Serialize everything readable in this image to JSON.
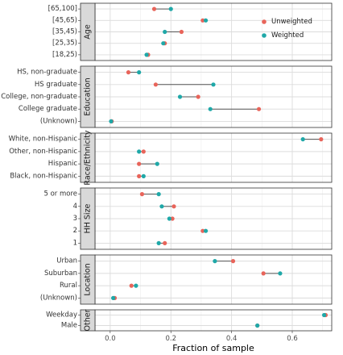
{
  "chart_data": {
    "type": "dumbbell",
    "xlabel": "Fraction of sample",
    "xlim": [
      -0.05,
      0.73
    ],
    "xticks": [
      0.0,
      0.2,
      0.4,
      0.6
    ],
    "xtick_labels": [
      "0.0",
      "0.2",
      "0.4",
      "0.6"
    ],
    "grid": true,
    "legend_position": "top-right",
    "series": [
      {
        "name": "Unweighted",
        "color": "#E8645A"
      },
      {
        "name": "Weighted",
        "color": "#1FA8A8"
      }
    ],
    "panels": [
      {
        "label": "Age",
        "rows": [
          {
            "category": "[65,100]",
            "unweighted": 0.145,
            "weighted": 0.2
          },
          {
            "category": "[45,65)",
            "unweighted": 0.305,
            "weighted": 0.315
          },
          {
            "category": "[35,45)",
            "unweighted": 0.235,
            "weighted": 0.18
          },
          {
            "category": "[25,35)",
            "unweighted": 0.18,
            "weighted": 0.175
          },
          {
            "category": "[18,25)",
            "unweighted": 0.125,
            "weighted": 0.12
          }
        ]
      },
      {
        "label": "Education",
        "rows": [
          {
            "category": "HS, non-graduate",
            "unweighted": 0.06,
            "weighted": 0.095
          },
          {
            "category": "HS graduate",
            "unweighted": 0.15,
            "weighted": 0.34
          },
          {
            "category": "College, non-graduate",
            "unweighted": 0.29,
            "weighted": 0.23
          },
          {
            "category": "College graduate",
            "unweighted": 0.49,
            "weighted": 0.33
          },
          {
            "category": "(Unknown)",
            "unweighted": 0.005,
            "weighted": 0.003
          }
        ]
      },
      {
        "label": "Race/Ethnicity",
        "rows": [
          {
            "category": "White, non-Hispanic",
            "unweighted": 0.695,
            "weighted": 0.635
          },
          {
            "category": "Other, non-Hispanic",
            "unweighted": 0.11,
            "weighted": 0.095
          },
          {
            "category": "Hispanic",
            "unweighted": 0.095,
            "weighted": 0.155
          },
          {
            "category": "Black, non-Hispanic",
            "unweighted": 0.095,
            "weighted": 0.11
          }
        ]
      },
      {
        "label": "HH Size",
        "rows": [
          {
            "category": "5 or more",
            "unweighted": 0.105,
            "weighted": 0.16
          },
          {
            "category": "4",
            "unweighted": 0.21,
            "weighted": 0.17
          },
          {
            "category": "3",
            "unweighted": 0.205,
            "weighted": 0.195
          },
          {
            "category": "2",
            "unweighted": 0.305,
            "weighted": 0.315
          },
          {
            "category": "1",
            "unweighted": 0.18,
            "weighted": 0.16
          }
        ]
      },
      {
        "label": "Location",
        "rows": [
          {
            "category": "Urban",
            "unweighted": 0.405,
            "weighted": 0.345
          },
          {
            "category": "Suburban",
            "unweighted": 0.505,
            "weighted": 0.56
          },
          {
            "category": "Rural",
            "unweighted": 0.07,
            "weighted": 0.085
          },
          {
            "category": "(Unknown)",
            "unweighted": 0.015,
            "weighted": 0.01
          }
        ]
      },
      {
        "label": "Other",
        "rows": [
          {
            "category": "Weekday",
            "unweighted": 0.71,
            "weighted": 0.705
          },
          {
            "category": "Male",
            "unweighted": 0.485,
            "weighted": 0.485
          }
        ]
      }
    ]
  }
}
